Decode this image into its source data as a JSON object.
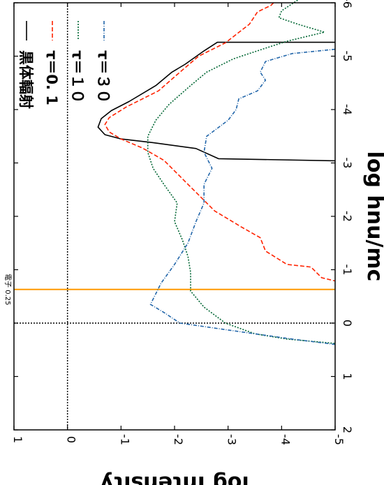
{
  "chart_data": {
    "type": "line",
    "orientation": "rotated-90-clockwise",
    "xlabel": "log hnu/mc",
    "ylabel": "log Intensity",
    "xlim": [
      -6,
      2
    ],
    "ylim": [
      -5,
      1
    ],
    "x_ticks": [
      -6,
      -5,
      -4,
      -3,
      -2,
      -1,
      0,
      1,
      2
    ],
    "y_ticks": [
      -5,
      -4,
      -3,
      -2,
      -1,
      0,
      1
    ],
    "reference_lines": [
      {
        "axis": "x",
        "value": 0,
        "style": "dotted",
        "color": "#000000"
      },
      {
        "axis": "y",
        "value": 0,
        "style": "dotted",
        "color": "#000000"
      },
      {
        "axis": "x",
        "value": -0.63,
        "style": "solid",
        "color": "#ff9900"
      }
    ],
    "annotation": {
      "text": "電子 0.25",
      "x": -0.63
    },
    "legend_position": "top-right",
    "series": [
      {
        "name": "黒体輻射",
        "color": "#000000",
        "dash": "solid",
        "points": [
          [
            -5.26,
            -5.0
          ],
          [
            -5.26,
            -2.8
          ],
          [
            -5.1,
            -2.55
          ],
          [
            -4.85,
            -2.2
          ],
          [
            -4.7,
            -1.95
          ],
          [
            -4.45,
            -1.65
          ],
          [
            -4.15,
            -1.15
          ],
          [
            -3.98,
            -0.82
          ],
          [
            -3.83,
            -0.63
          ],
          [
            -3.67,
            -0.57
          ],
          [
            -3.53,
            -0.7
          ],
          [
            -3.45,
            -1.0
          ],
          [
            -3.38,
            -1.6
          ],
          [
            -3.27,
            -2.4
          ],
          [
            -3.08,
            -2.82
          ],
          [
            -3.04,
            -5.0
          ]
        ]
      },
      {
        "name": "τ＝0. 1",
        "color": "#ff2200",
        "dash": "dashed",
        "points": [
          [
            -6.0,
            -3.85
          ],
          [
            -5.95,
            -3.8
          ],
          [
            -5.83,
            -3.55
          ],
          [
            -5.6,
            -3.4
          ],
          [
            -5.25,
            -2.95
          ],
          [
            -5.0,
            -2.45
          ],
          [
            -4.7,
            -2.1
          ],
          [
            -4.35,
            -1.7
          ],
          [
            -4.05,
            -1.1
          ],
          [
            -3.85,
            -0.78
          ],
          [
            -3.72,
            -0.7
          ],
          [
            -3.58,
            -0.78
          ],
          [
            -3.45,
            -1.0
          ],
          [
            -3.28,
            -1.4
          ],
          [
            -3.05,
            -1.8
          ],
          [
            -2.75,
            -2.1
          ],
          [
            -2.45,
            -2.4
          ],
          [
            -2.1,
            -2.75
          ],
          [
            -1.8,
            -3.25
          ],
          [
            -1.6,
            -3.6
          ],
          [
            -1.35,
            -3.7
          ],
          [
            -1.1,
            -4.1
          ],
          [
            -1.05,
            -4.55
          ],
          [
            -0.85,
            -4.75
          ],
          [
            -0.79,
            -5.0
          ]
        ]
      },
      {
        "name": "τ＝１０",
        "color": "#006633",
        "dash": "dotted",
        "points": [
          [
            -6.05,
            -4.3
          ],
          [
            -5.85,
            -4.0
          ],
          [
            -5.72,
            -3.95
          ],
          [
            -5.6,
            -4.3
          ],
          [
            -5.45,
            -4.8
          ],
          [
            -5.28,
            -4.1
          ],
          [
            -5.15,
            -3.7
          ],
          [
            -4.95,
            -3.1
          ],
          [
            -4.7,
            -2.6
          ],
          [
            -4.45,
            -2.3
          ],
          [
            -4.1,
            -1.9
          ],
          [
            -3.8,
            -1.65
          ],
          [
            -3.5,
            -1.5
          ],
          [
            -3.2,
            -1.5
          ],
          [
            -2.9,
            -1.6
          ],
          [
            -2.6,
            -1.8
          ],
          [
            -2.25,
            -2.05
          ],
          [
            -1.9,
            -2.0
          ],
          [
            -1.55,
            -2.15
          ],
          [
            -1.25,
            -2.25
          ],
          [
            -0.95,
            -2.3
          ],
          [
            -0.6,
            -2.3
          ],
          [
            -0.3,
            -2.55
          ],
          [
            0.0,
            -2.95
          ],
          [
            0.2,
            -3.5
          ],
          [
            0.3,
            -4.1
          ],
          [
            0.38,
            -5.0
          ]
        ]
      },
      {
        "name": "τ＝３０",
        "color": "#2266aa",
        "dash": "dash-dot",
        "points": [
          [
            -5.13,
            -5.0
          ],
          [
            -5.05,
            -4.2
          ],
          [
            -4.9,
            -3.7
          ],
          [
            -4.7,
            -3.6
          ],
          [
            -4.55,
            -3.7
          ],
          [
            -4.35,
            -3.55
          ],
          [
            -4.2,
            -3.2
          ],
          [
            -4.0,
            -3.15
          ],
          [
            -3.8,
            -3.0
          ],
          [
            -3.5,
            -2.6
          ],
          [
            -3.2,
            -2.55
          ],
          [
            -2.9,
            -2.7
          ],
          [
            -2.6,
            -2.55
          ],
          [
            -2.25,
            -2.55
          ],
          [
            -1.9,
            -2.4
          ],
          [
            -1.5,
            -2.25
          ],
          [
            -1.1,
            -2.0
          ],
          [
            -0.75,
            -1.75
          ],
          [
            -0.45,
            -1.6
          ],
          [
            -0.35,
            -1.55
          ],
          [
            -0.2,
            -1.8
          ],
          [
            0.0,
            -2.1
          ],
          [
            0.13,
            -3.0
          ],
          [
            0.3,
            -4.2
          ],
          [
            0.4,
            -5.0
          ]
        ]
      }
    ]
  }
}
